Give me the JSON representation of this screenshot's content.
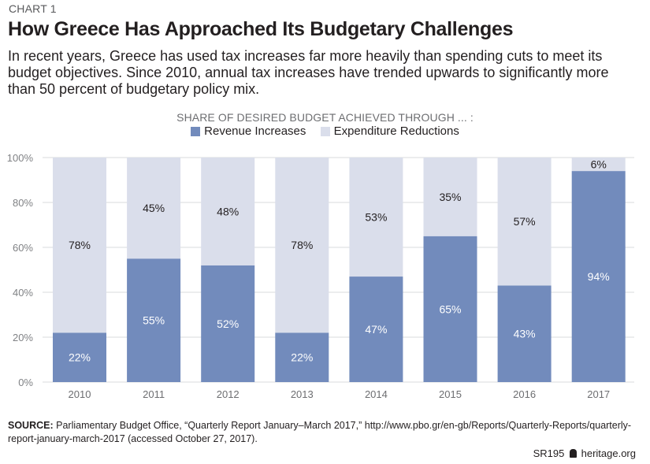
{
  "header": {
    "kicker": "CHART 1",
    "title": "How Greece Has Approached Its Budgetary Challenges",
    "subtitle": "In recent years, Greece has used tax increases far more heavily than spending cuts to meet its budget objectives. Since 2010, annual tax increases have trended upwards to significantly more than 50 percent of budgetary policy mix."
  },
  "legend": {
    "title": "SHARE OF DESIRED BUDGET ACHIEVED THROUGH ... :",
    "items": [
      {
        "label": "Revenue Increases",
        "color": "#728bbc"
      },
      {
        "label": "Expenditure Reductions",
        "color": "#dadeeb"
      }
    ]
  },
  "chart_data": {
    "type": "bar",
    "stacked": true,
    "title": "How Greece Has Approached Its Budgetary Challenges",
    "xlabel": "",
    "ylabel": "",
    "categories": [
      "2010",
      "2011",
      "2012",
      "2013",
      "2014",
      "2015",
      "2016",
      "2017"
    ],
    "series": [
      {
        "name": "Revenue Increases",
        "color": "#728bbc",
        "values": [
          22,
          55,
          52,
          22,
          47,
          65,
          43,
          94
        ]
      },
      {
        "name": "Expenditure Reductions",
        "color": "#dadeeb",
        "values": [
          78,
          45,
          48,
          78,
          53,
          35,
          57,
          6
        ]
      }
    ],
    "data_labels": {
      "Revenue Increases": [
        "22%",
        "55%",
        "52%",
        "22%",
        "47%",
        "65%",
        "43%",
        "94%"
      ],
      "Expenditure Reductions": [
        "78%",
        "45%",
        "48%",
        "78%",
        "53%",
        "35%",
        "57%",
        "6%"
      ]
    },
    "ylim": [
      0,
      100
    ],
    "yticks": [
      0,
      20,
      40,
      60,
      80,
      100
    ],
    "ytick_labels": [
      "0%",
      "20%",
      "40%",
      "60%",
      "80%",
      "100%"
    ],
    "grid": true,
    "legend_position": "top-center"
  },
  "source": {
    "label": "SOURCE:",
    "text": " Parliamentary Budget Office, “Quarterly Report January–March 2017,” http://www.pbo.gr/en-gb/Reports/Quarterly-Reports/quarterly-report-january-march-2017 (accessed October 27, 2017)."
  },
  "footer": {
    "report_id": "SR195",
    "site": "heritage.org"
  }
}
